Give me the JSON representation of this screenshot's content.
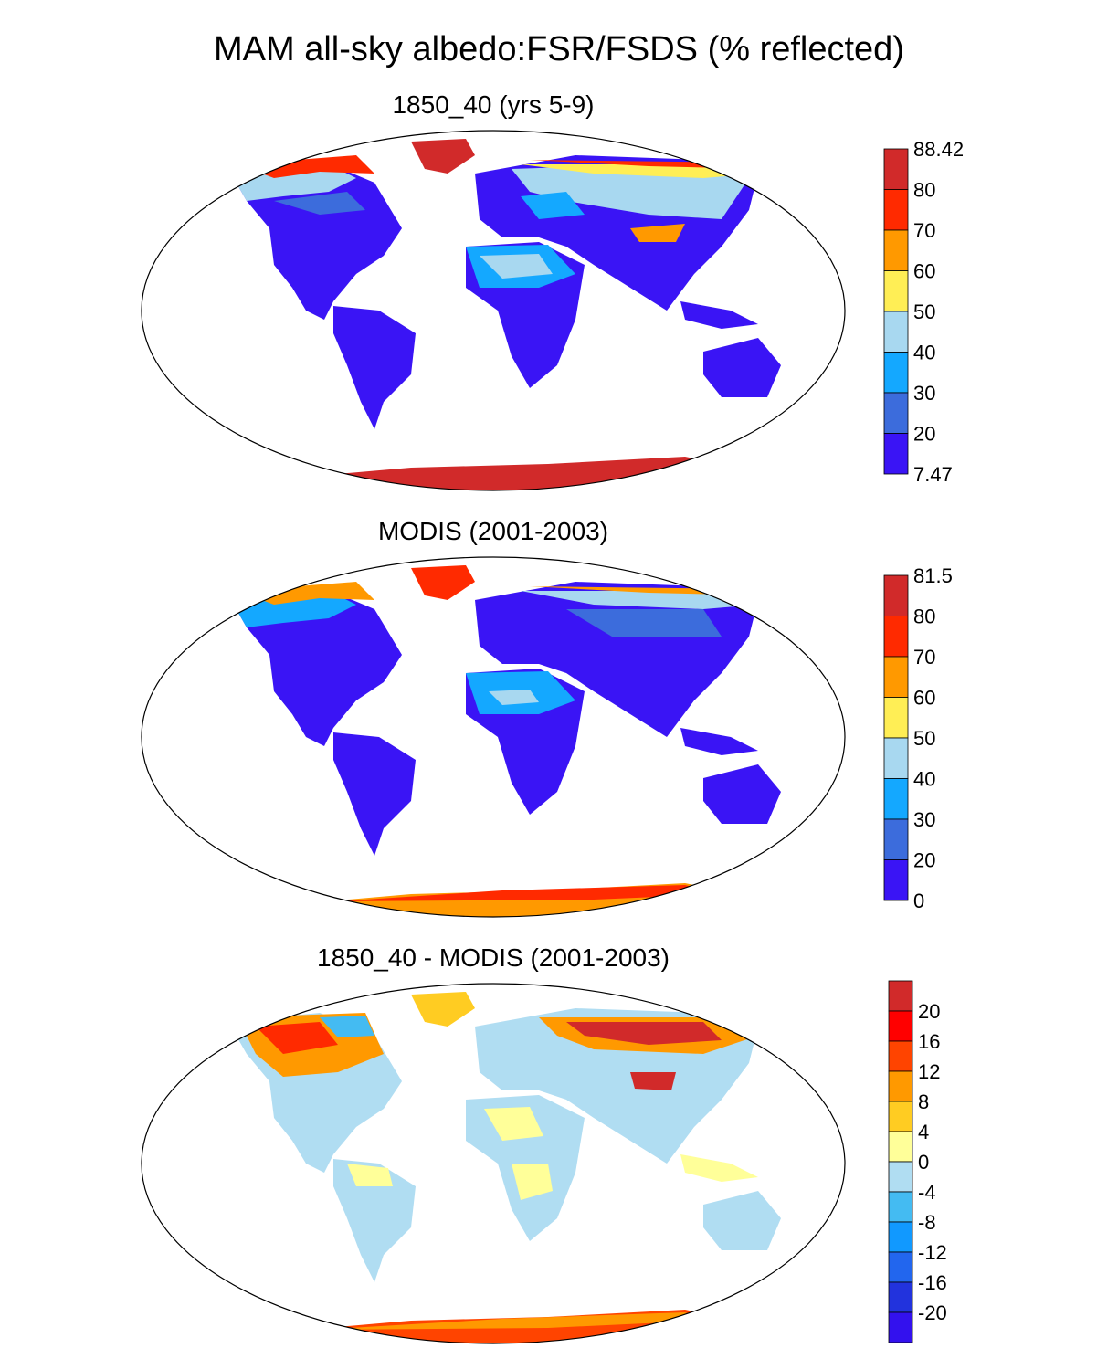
{
  "title": "MAM all-sky albedo:FSR/FSDS (% reflected)",
  "panels": [
    {
      "id": "model",
      "title": "1850_40 (yrs 5-9)",
      "colorbar": {
        "labels": [
          "88.42",
          "80",
          "70",
          "60",
          "50",
          "40",
          "30",
          "20",
          "7.47"
        ],
        "colors": [
          "#d12a2a",
          "#ff2a00",
          "#ff9900",
          "#ffee55",
          "#a8d8f0",
          "#14a8ff",
          "#3c6cdc",
          "#3a14f5"
        ]
      }
    },
    {
      "id": "obs",
      "title": "MODIS (2001-2003)",
      "colorbar": {
        "labels": [
          "81.5",
          "80",
          "70",
          "60",
          "50",
          "40",
          "30",
          "20",
          "0"
        ],
        "colors": [
          "#d12a2a",
          "#ff2a00",
          "#ff9900",
          "#ffee55",
          "#a8d8f0",
          "#14a8ff",
          "#3c6cdc",
          "#3a14f5"
        ]
      }
    },
    {
      "id": "diff",
      "title": "1850_40 - MODIS (2001-2003)",
      "colorbar": {
        "labels": [
          "20",
          "16",
          "12",
          "8",
          "4",
          "0",
          "-4",
          "-8",
          "-12",
          "-16",
          "-20"
        ],
        "colors": [
          "#d12a2a",
          "#ff0000",
          "#ff4400",
          "#ff9900",
          "#ffcc22",
          "#ffff99",
          "#b0ddf2",
          "#44bbf2",
          "#1199ff",
          "#2266ee",
          "#2233dd",
          "#3311ee"
        ]
      }
    }
  ]
}
